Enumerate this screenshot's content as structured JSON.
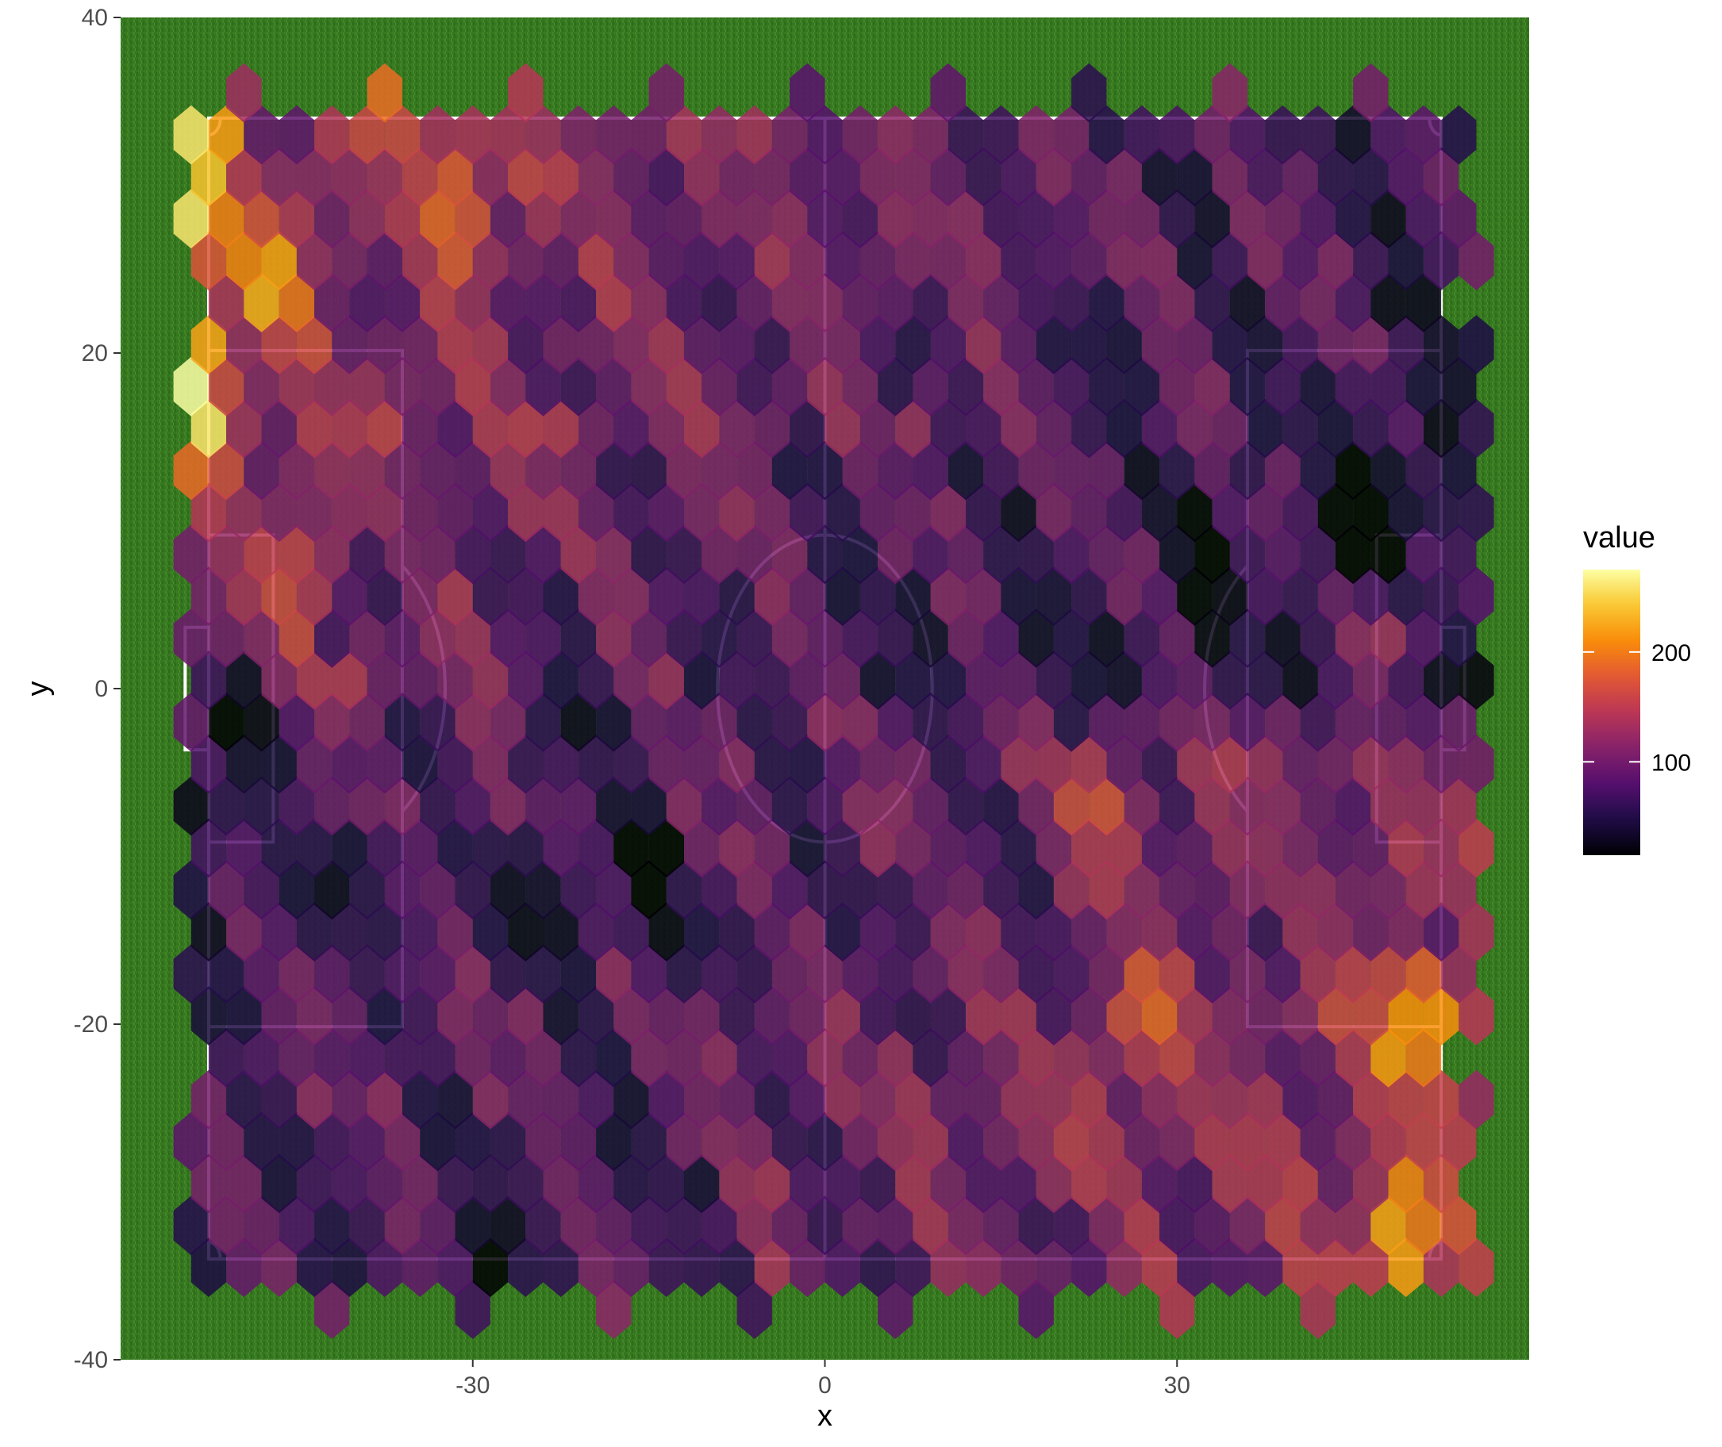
{
  "chart_data": {
    "type": "heatmap",
    "subtype": "hexbin",
    "background": "football pitch on grass",
    "title": "",
    "xlabel": "x",
    "ylabel": "y",
    "xlim": [
      -60,
      60
    ],
    "ylim": [
      -40,
      40
    ],
    "x_ticks": [
      -30,
      0,
      30
    ],
    "x_tick_labels": [
      "-30",
      "0",
      "30"
    ],
    "y_ticks": [
      -40,
      -20,
      0,
      20,
      40
    ],
    "y_tick_labels": [
      "-40",
      "-20",
      "0",
      "20",
      "40"
    ],
    "grid": false,
    "legend": {
      "title": "value",
      "placement": "right",
      "type": "colorbar",
      "range": [
        15,
        275
      ],
      "ticks": [
        100,
        200
      ],
      "tick_labels": [
        "100",
        "200"
      ],
      "colorscale": "inferno"
    },
    "pitch": {
      "length": 105,
      "width": 68,
      "penalty_area_depth": 16.5,
      "penalty_area_width": 40.3,
      "goal_area_depth": 5.5,
      "goal_area_width": 18.3,
      "goal_width": 7.3,
      "goal_depth": 2,
      "center_circle_radius": 9.15,
      "line_color": "#ffffff"
    },
    "hex_grid": {
      "cols": 42,
      "rows": 38,
      "x_start": -54,
      "x_step": 3,
      "y_start": -37,
      "y_step": 2.5,
      "fill_opacity": 0.85
    },
    "hex_summary": {
      "min": 15,
      "max": 275,
      "hot_spots": [
        {
          "x": -54,
          "y": 34.5,
          "value": 270
        },
        {
          "x": -54.5,
          "y": 28,
          "value": 275
        },
        {
          "x": -54.5,
          "y": 19.5,
          "value": 265
        },
        {
          "x": -54.5,
          "y": 16,
          "value": 262
        },
        {
          "x": -47,
          "y": 24.5,
          "value": 245
        },
        {
          "x": -39,
          "y": 37,
          "value": 215
        },
        {
          "x": -5,
          "y": 37,
          "value": 220
        },
        {
          "x": -31,
          "y": 29.5,
          "value": 225
        },
        {
          "x": -45,
          "y": 7.5,
          "value": 220
        },
        {
          "x": 48,
          "y": 3,
          "value": 245
        },
        {
          "x": 50.5,
          "y": -20,
          "value": 270
        },
        {
          "x": 49,
          "y": -33,
          "value": 255
        },
        {
          "x": 24,
          "y": -7.5,
          "value": 210
        },
        {
          "x": 27,
          "y": -20,
          "value": 210
        }
      ],
      "cold_spots": [
        {
          "x": -50.5,
          "y": -1,
          "value": 20
        },
        {
          "x": -53.5,
          "y": -7.5,
          "value": 25
        },
        {
          "x": -29,
          "y": -35,
          "value": 15
        },
        {
          "x": 47.5,
          "y": 9,
          "value": 18
        },
        {
          "x": 46.5,
          "y": 11.5,
          "value": 35
        },
        {
          "x": -23,
          "y": -3,
          "value": 30
        },
        {
          "x": -16,
          "y": -10,
          "value": 35
        },
        {
          "x": 33,
          "y": 7.5,
          "value": 45
        },
        {
          "x": 47.5,
          "y": -1,
          "value": 40
        }
      ]
    }
  }
}
